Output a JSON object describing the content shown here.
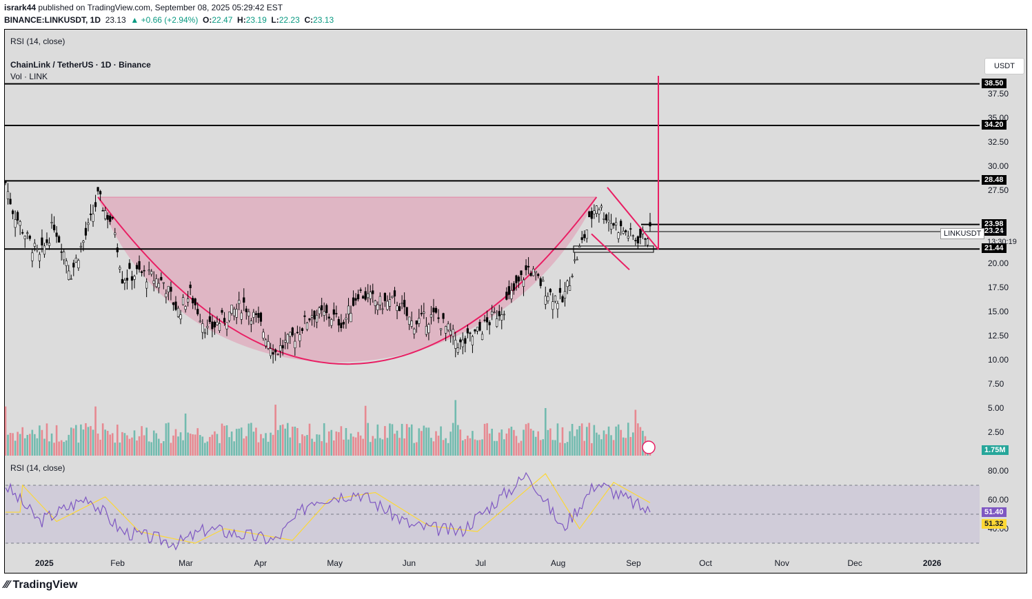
{
  "header": {
    "publisher": "isrark44",
    "published_text": "published on TradingView.com, September 08, 2025 05:29:42 EST",
    "symbol": "BINANCE:LINKUSDT, 1D",
    "last": "23.13",
    "change": "▲ +0.66 (+2.94%)",
    "o_label": "O:",
    "o_value": "22.47",
    "h_label": "H:",
    "h_value": "23.19",
    "l_label": "L:",
    "l_value": "22.23",
    "c_label": "C:",
    "c_value": "23.13"
  },
  "legend": {
    "rsi_top": "RSI (14, close)",
    "pair": "ChainLink / TetherUS · 1D · Binance",
    "vol": "Vol · LINK",
    "rsi_pane": "RSI (14, close)"
  },
  "price_axis": {
    "currency": "USDT",
    "ticks": [
      "37.50",
      "35.00",
      "32.50",
      "30.00",
      "27.50",
      "23.98",
      "20.00",
      "17.50",
      "15.00",
      "12.50",
      "10.00",
      "7.50",
      "5.00",
      "2.50"
    ],
    "tick_values": [
      37.5,
      35,
      32.5,
      30,
      27.5,
      23.98,
      20,
      17.5,
      15,
      12.5,
      10,
      7.5,
      5,
      2.5
    ],
    "levels": [
      {
        "label": "38.50",
        "value": 38.5
      },
      {
        "label": "34.20",
        "value": 34.2
      },
      {
        "label": "28.48",
        "value": 28.48
      },
      {
        "label": "23.98",
        "value": 23.98
      },
      {
        "label": "23.24",
        "value": 23.24
      },
      {
        "label": "21.44",
        "value": 21.44
      }
    ],
    "current_symbol": "LINKUSDT",
    "current_price": "23.13",
    "countdown": "13:30:19",
    "volume_badge": "1.75M"
  },
  "rsi_axis": {
    "ticks": [
      "80.00",
      "60.00",
      "40.00"
    ],
    "tick_values": [
      80,
      60,
      40
    ],
    "rsi_value": "51.40",
    "ma_value": "51.32"
  },
  "time_axis": [
    "2025",
    "Feb",
    "Mar",
    "Apr",
    "May",
    "Jun",
    "Jul",
    "Aug",
    "Sep",
    "Oct",
    "Nov",
    "Dec",
    "2026"
  ],
  "footer": "TradingView",
  "colors": {
    "up": "#089981",
    "down": "#f23645",
    "pattern": "#e91e63",
    "rsi": "#7e57c2",
    "rsi_ma": "#fdd835",
    "bg": "#dcdcdc"
  },
  "chart_data": {
    "type": "candlestick",
    "title": "ChainLink / TetherUS · 1D · Binance",
    "x_start": "2024-12-17",
    "x_end": "2025-09-08",
    "ylim": [
      0,
      40
    ],
    "close_path": [
      [
        "2024-12-17",
        28.3
      ],
      [
        "2024-12-20",
        25.5
      ],
      [
        "2024-12-26",
        22.5
      ],
      [
        "2024-12-31",
        20.5
      ],
      [
        "2025-01-06",
        24.0
      ],
      [
        "2025-01-13",
        19.0
      ],
      [
        "2025-01-20",
        23.5
      ],
      [
        "2025-01-24",
        26.8
      ],
      [
        "2025-01-31",
        23.5
      ],
      [
        "2025-02-03",
        18.5
      ],
      [
        "2025-02-10",
        19.0
      ],
      [
        "2025-02-20",
        18.0
      ],
      [
        "2025-02-26",
        15.0
      ],
      [
        "2025-03-03",
        16.8
      ],
      [
        "2025-03-10",
        13.0
      ],
      [
        "2025-03-18",
        14.5
      ],
      [
        "2025-03-25",
        15.8
      ],
      [
        "2025-04-01",
        13.5
      ],
      [
        "2025-04-07",
        10.8
      ],
      [
        "2025-04-15",
        12.5
      ],
      [
        "2025-04-22",
        14.8
      ],
      [
        "2025-04-30",
        14.5
      ],
      [
        "2025-05-05",
        13.8
      ],
      [
        "2025-05-11",
        17.0
      ],
      [
        "2025-05-20",
        15.8
      ],
      [
        "2025-05-27",
        16.0
      ],
      [
        "2025-06-02",
        13.8
      ],
      [
        "2025-06-12",
        14.5
      ],
      [
        "2025-06-22",
        11.5
      ],
      [
        "2025-06-30",
        13.0
      ],
      [
        "2025-07-10",
        15.5
      ],
      [
        "2025-07-20",
        19.5
      ],
      [
        "2025-07-28",
        17.0
      ],
      [
        "2025-08-03",
        16.0
      ],
      [
        "2025-08-08",
        20.0
      ],
      [
        "2025-08-13",
        23.5
      ],
      [
        "2025-08-17",
        26.2
      ],
      [
        "2025-08-22",
        24.5
      ],
      [
        "2025-08-27",
        23.5
      ],
      [
        "2025-09-02",
        22.5
      ],
      [
        "2025-09-08",
        23.13
      ]
    ],
    "rsi_path": [
      [
        "2024-12-17",
        70
      ],
      [
        "2024-12-31",
        45
      ],
      [
        "2025-01-20",
        62
      ],
      [
        "2025-02-03",
        38
      ],
      [
        "2025-02-26",
        30
      ],
      [
        "2025-03-10",
        40
      ],
      [
        "2025-04-07",
        32
      ],
      [
        "2025-04-22",
        60
      ],
      [
        "2025-05-11",
        65
      ],
      [
        "2025-06-02",
        42
      ],
      [
        "2025-06-22",
        38
      ],
      [
        "2025-07-20",
        78
      ],
      [
        "2025-08-03",
        40
      ],
      [
        "2025-08-17",
        72
      ],
      [
        "2025-09-08",
        51.4
      ]
    ],
    "rsi_ma_value": 51.32,
    "volume_last": "1.75M"
  }
}
